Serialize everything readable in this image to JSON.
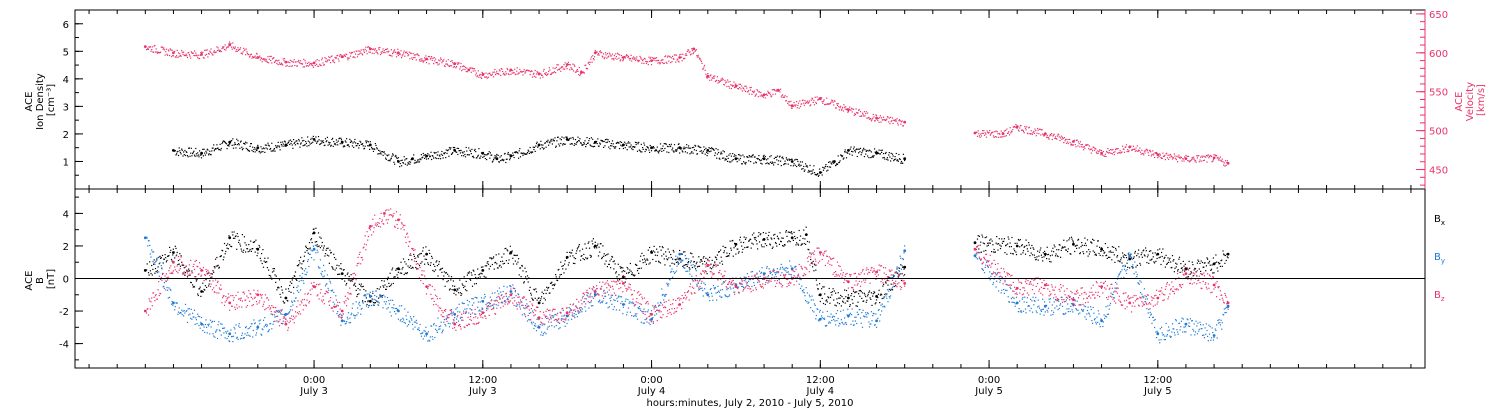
{
  "chart_data": [
    {
      "type": "scatter",
      "panel": "top",
      "left_axis": {
        "label_lines": [
          "ACE",
          "Ion Density",
          "[cm⁻³]"
        ],
        "ylim": [
          0,
          6.5
        ],
        "ticks": [
          "1",
          "2",
          "3",
          "4",
          "5",
          "6"
        ]
      },
      "right_axis": {
        "label_lines": [
          "ACE",
          "Velocity",
          "[km/s]"
        ],
        "ylim": [
          425,
          655
        ],
        "ticks": [
          "450",
          "500",
          "550",
          "600",
          "650"
        ],
        "color": "#e8336a"
      },
      "series": [
        {
          "key": "density",
          "axis": "left",
          "color": "#000000",
          "points": [
            [
              -10,
              1.4
            ],
            [
              -8,
              1.3
            ],
            [
              -6,
              1.7
            ],
            [
              -4,
              1.5
            ],
            [
              -2,
              1.6
            ],
            [
              0,
              1.8
            ],
            [
              2,
              1.7
            ],
            [
              4,
              1.6
            ],
            [
              6,
              1.0
            ],
            [
              7,
              1.1
            ],
            [
              8,
              1.2
            ],
            [
              10,
              1.4
            ],
            [
              12,
              1.3
            ],
            [
              13,
              1.1
            ],
            [
              14,
              1.2
            ],
            [
              16,
              1.6
            ],
            [
              18,
              1.8
            ],
            [
              20,
              1.7
            ],
            [
              22,
              1.6
            ],
            [
              24,
              1.5
            ],
            [
              26,
              1.5
            ],
            [
              28,
              1.4
            ],
            [
              30,
              1.1
            ],
            [
              32,
              1.1
            ],
            [
              34,
              1.0
            ],
            [
              36,
              0.6
            ],
            [
              37,
              1.0
            ],
            [
              38,
              1.4
            ],
            [
              40,
              1.3
            ],
            [
              42,
              1.1
            ]
          ]
        },
        {
          "key": "velocity",
          "axis": "right",
          "color": "#e8336a",
          "points": [
            [
              -12,
              608
            ],
            [
              -10,
              600
            ],
            [
              -8,
              598
            ],
            [
              -6,
              610
            ],
            [
              -4,
              594
            ],
            [
              -2,
              588
            ],
            [
              0,
              587
            ],
            [
              2,
              595
            ],
            [
              4,
              605
            ],
            [
              6,
              600
            ],
            [
              8,
              592
            ],
            [
              10,
              586
            ],
            [
              11,
              578
            ],
            [
              12,
              572
            ],
            [
              14,
              578
            ],
            [
              16,
              573
            ],
            [
              18,
              585
            ],
            [
              19,
              575
            ],
            [
              20,
              600
            ],
            [
              22,
              594
            ],
            [
              24,
              590
            ],
            [
              26,
              594
            ],
            [
              27,
              605
            ],
            [
              28,
              570
            ],
            [
              30,
              557
            ],
            [
              32,
              546
            ],
            [
              33,
              552
            ],
            [
              34,
              532
            ],
            [
              36,
              541
            ],
            [
              38,
              527
            ],
            [
              40,
              516
            ],
            [
              42,
              511
            ],
            [
              47,
              497
            ],
            [
              49,
              496
            ],
            [
              50,
              505
            ],
            [
              52,
              496
            ],
            [
              54,
              486
            ],
            [
              56,
              471
            ],
            [
              58,
              479
            ],
            [
              60,
              469
            ],
            [
              62,
              464
            ],
            [
              64,
              465
            ],
            [
              65,
              458
            ]
          ]
        }
      ]
    },
    {
      "type": "scatter",
      "panel": "bottom",
      "left_axis": {
        "label_lines": [
          "ACE",
          "B",
          "[nT]"
        ],
        "ylim": [
          -5.5,
          5.5
        ],
        "ticks": [
          "-4",
          "-2",
          "0",
          "2",
          "4"
        ]
      },
      "zero_line": 0,
      "series": [
        {
          "key": "bx",
          "label_main": "B",
          "label_sub": "x",
          "color": "#000000",
          "points": [
            [
              -12,
              0.5
            ],
            [
              -10,
              1.6
            ],
            [
              -8,
              -0.8
            ],
            [
              -6,
              2.5
            ],
            [
              -4,
              1.8
            ],
            [
              -2,
              -1.2
            ],
            [
              0,
              2.8
            ],
            [
              2,
              0.3
            ],
            [
              4,
              -1.4
            ],
            [
              6,
              0.6
            ],
            [
              8,
              1.5
            ],
            [
              10,
              -0.7
            ],
            [
              12,
              0.5
            ],
            [
              14,
              1.6
            ],
            [
              16,
              -1.5
            ],
            [
              18,
              1.3
            ],
            [
              20,
              2.0
            ],
            [
              22,
              0.1
            ],
            [
              24,
              1.6
            ],
            [
              26,
              1.2
            ],
            [
              28,
              0.8
            ],
            [
              30,
              2.1
            ],
            [
              32,
              2.4
            ],
            [
              34,
              2.5
            ],
            [
              35,
              2.7
            ],
            [
              36,
              -1.0
            ],
            [
              38,
              -1.2
            ],
            [
              40,
              -1.1
            ],
            [
              42,
              0.7
            ],
            [
              47,
              2.2
            ],
            [
              50,
              2.0
            ],
            [
              52,
              1.5
            ],
            [
              54,
              2.1
            ],
            [
              56,
              1.8
            ],
            [
              58,
              1.2
            ],
            [
              60,
              1.5
            ],
            [
              62,
              0.6
            ],
            [
              64,
              0.9
            ],
            [
              65,
              1.5
            ]
          ]
        },
        {
          "key": "by",
          "label_main": "B",
          "label_sub": "y",
          "color": "#1f7ad6",
          "points": [
            [
              -12,
              2.5
            ],
            [
              -10,
              -1.5
            ],
            [
              -8,
              -2.8
            ],
            [
              -6,
              -3.4
            ],
            [
              -4,
              -3.0
            ],
            [
              -2,
              -2.2
            ],
            [
              0,
              1.8
            ],
            [
              2,
              -2.6
            ],
            [
              4,
              -1.1
            ],
            [
              6,
              -2.0
            ],
            [
              8,
              -3.4
            ],
            [
              10,
              -2.2
            ],
            [
              12,
              -1.4
            ],
            [
              14,
              -0.8
            ],
            [
              16,
              -3.0
            ],
            [
              18,
              -2.3
            ],
            [
              20,
              -1.0
            ],
            [
              22,
              -1.6
            ],
            [
              24,
              -2.5
            ],
            [
              26,
              1.5
            ],
            [
              28,
              -1.0
            ],
            [
              30,
              -0.4
            ],
            [
              32,
              0.3
            ],
            [
              34,
              0.6
            ],
            [
              36,
              -2.5
            ],
            [
              38,
              -2.3
            ],
            [
              40,
              -2.6
            ],
            [
              42,
              1.7
            ],
            [
              47,
              1.4
            ],
            [
              50,
              -1.5
            ],
            [
              52,
              -1.7
            ],
            [
              54,
              -1.6
            ],
            [
              56,
              -2.6
            ],
            [
              58,
              1.4
            ],
            [
              60,
              -3.4
            ],
            [
              62,
              -2.8
            ],
            [
              64,
              -3.5
            ],
            [
              65,
              -1.7
            ]
          ]
        },
        {
          "key": "bz",
          "label_main": "B",
          "label_sub": "z",
          "color": "#e8336a",
          "points": [
            [
              -12,
              -2.0
            ],
            [
              -10,
              1.0
            ],
            [
              -8,
              0.5
            ],
            [
              -6,
              -1.5
            ],
            [
              -4,
              -1.0
            ],
            [
              -2,
              -2.8
            ],
            [
              0,
              -0.5
            ],
            [
              2,
              -2.0
            ],
            [
              4,
              3.2
            ],
            [
              5,
              4.0
            ],
            [
              6,
              3.6
            ],
            [
              8,
              -0.5
            ],
            [
              10,
              -2.8
            ],
            [
              12,
              -2.1
            ],
            [
              14,
              -1.0
            ],
            [
              16,
              -2.4
            ],
            [
              18,
              -2.1
            ],
            [
              20,
              -0.8
            ],
            [
              22,
              -0.3
            ],
            [
              24,
              -2.2
            ],
            [
              26,
              -1.6
            ],
            [
              28,
              0.8
            ],
            [
              30,
              -0.5
            ],
            [
              32,
              0.0
            ],
            [
              34,
              0.0
            ],
            [
              36,
              1.6
            ],
            [
              38,
              -0.2
            ],
            [
              40,
              0.4
            ],
            [
              42,
              -0.3
            ],
            [
              47,
              1.8
            ],
            [
              50,
              -0.6
            ],
            [
              52,
              -0.4
            ],
            [
              54,
              -1.3
            ],
            [
              56,
              -0.5
            ],
            [
              58,
              -1.5
            ],
            [
              60,
              -1.2
            ],
            [
              62,
              0.3
            ],
            [
              64,
              -0.4
            ],
            [
              65,
              -1.5
            ]
          ]
        }
      ]
    }
  ],
  "x_axis": {
    "xlim": [
      -17,
      79
    ],
    "ticks": [
      {
        "hour": 0,
        "time": "0:00",
        "date": "July 3"
      },
      {
        "hour": 12,
        "time": "12:00",
        "date": "July 3"
      },
      {
        "hour": 24,
        "time": "0:00",
        "date": "July 4"
      },
      {
        "hour": 36,
        "time": "12:00",
        "date": "July 4"
      },
      {
        "hour": 48,
        "time": "0:00",
        "date": "July 5"
      },
      {
        "hour": 60,
        "time": "12:00",
        "date": "July 5"
      }
    ],
    "label": "hours:minutes, July  2, 2010 - July  5, 2010"
  }
}
